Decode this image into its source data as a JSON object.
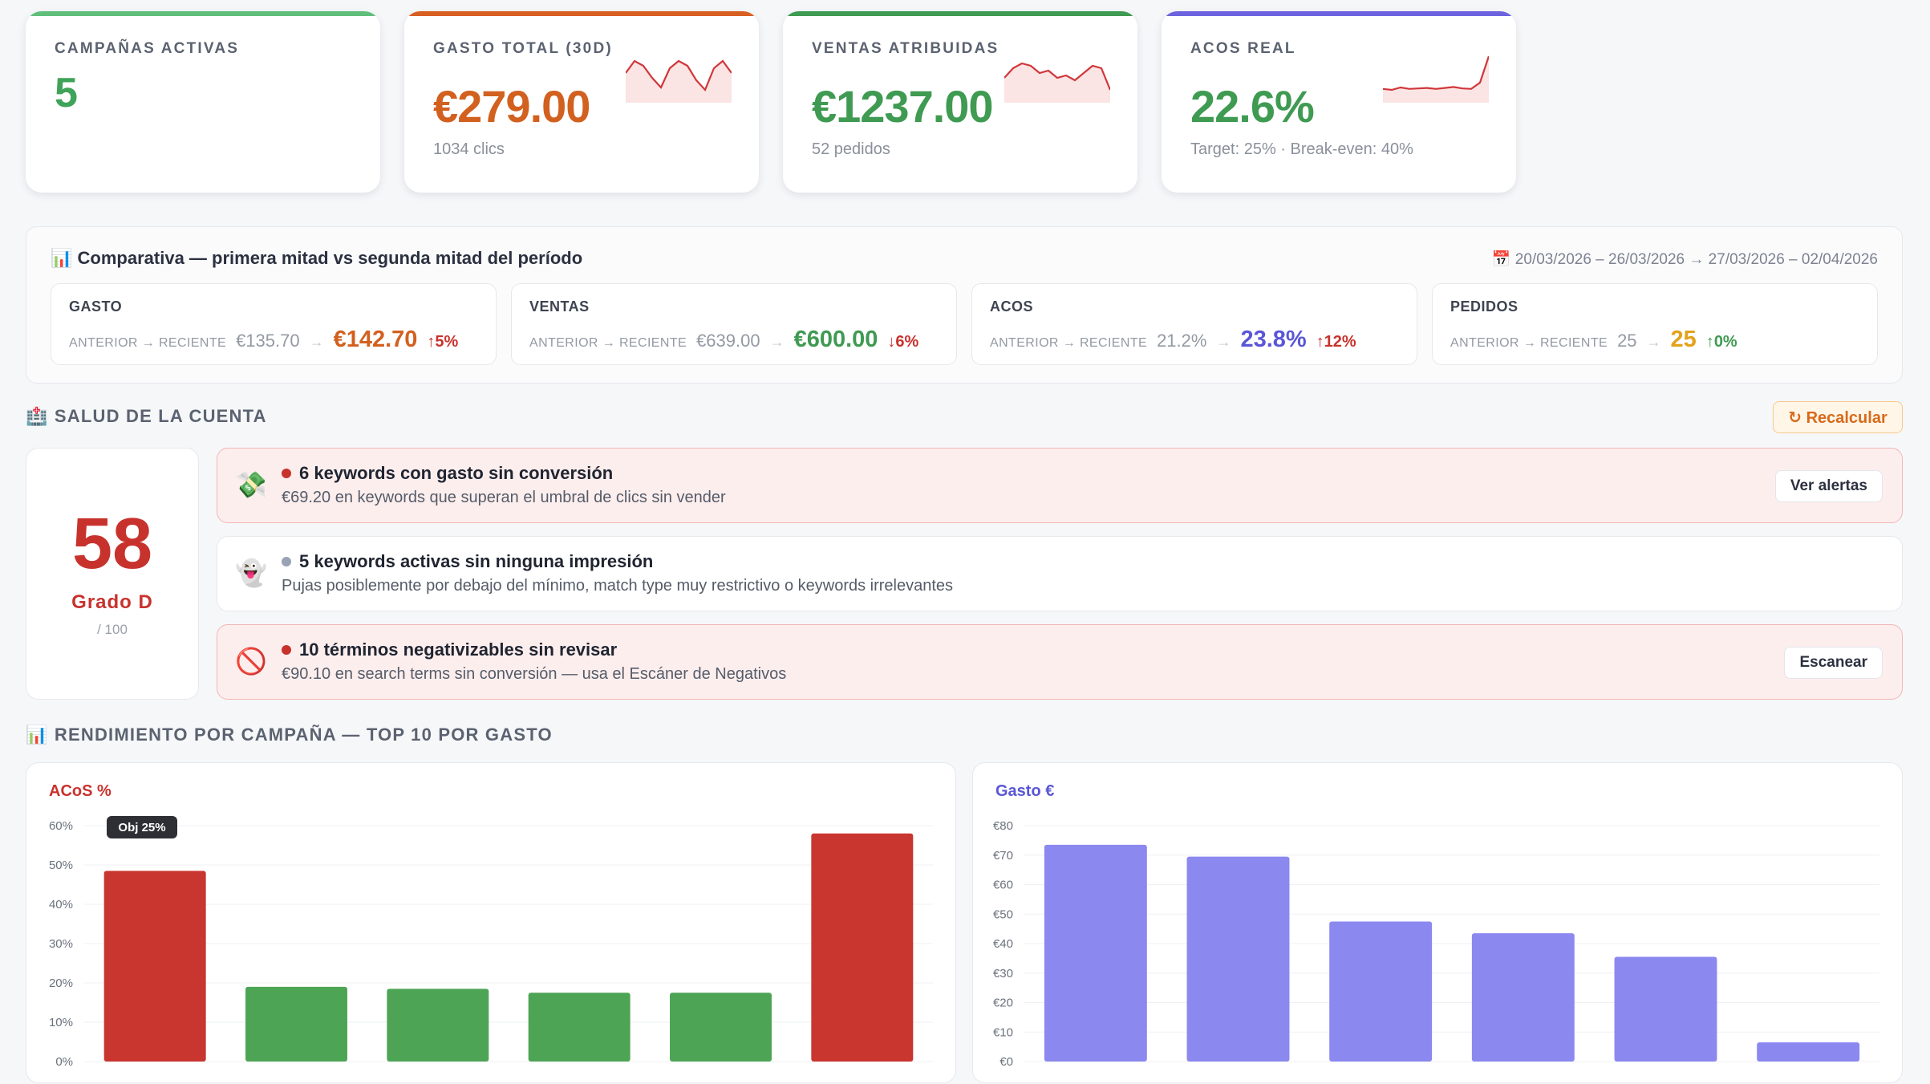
{
  "kpis": [
    {
      "label": "CAMPAÑAS ACTIVAS",
      "value": "5",
      "sub": "",
      "color": "#3fa35a",
      "bar": "#5fbf7a"
    },
    {
      "label": "GASTO TOTAL (30D)",
      "value": "€279.00",
      "sub": "1034 clics",
      "color": "#d2601f",
      "bar": "#d85f22"
    },
    {
      "label": "VENTAS ATRIBUIDAS",
      "value": "€1237.00",
      "sub": "52 pedidos",
      "color": "#3f9a52",
      "bar": "#3f9a52"
    },
    {
      "label": "ACOS REAL",
      "value": "22.6%",
      "sub": "Target: 25% · Break-even: 40%",
      "color": "#3f9a52",
      "bar": "#6d63e0"
    }
  ],
  "compare": {
    "icon": "📊",
    "title": "Comparativa — primera mitad vs segunda mitad del período",
    "range": "📅 20/03/2026 – 26/03/2026 → 27/03/2026 – 02/04/2026",
    "mini_label": "ANTERIOR → RECIENTE",
    "cards": [
      {
        "name": "GASTO",
        "prev": "€135.70",
        "now": "€142.70",
        "delta": "↑5%",
        "now_color": "#d2601f",
        "delta_color": "#c8322d"
      },
      {
        "name": "VENTAS",
        "prev": "€639.00",
        "now": "€600.00",
        "delta": "↓6%",
        "now_color": "#3f9a52",
        "delta_color": "#c8322d"
      },
      {
        "name": "ACOS",
        "prev": "21.2%",
        "now": "23.8%",
        "delta": "↑12%",
        "now_color": "#5b56d6",
        "delta_color": "#c8322d"
      },
      {
        "name": "PEDIDOS",
        "prev": "25",
        "now": "25",
        "delta": "↑0%",
        "now_color": "#e3a21a",
        "delta_color": "#3f9a52"
      }
    ]
  },
  "health": {
    "title": "🏥 SALUD DE LA CUENTA",
    "recalc": "↻ Recalcular",
    "score": "58",
    "grade": "Grado D",
    "max": "/ 100",
    "alerts": [
      {
        "icon": "💸",
        "title": "6 keywords con gasto sin conversión",
        "desc": "€69.20 en keywords que superan el umbral de clics sin vender",
        "button": "Ver alertas",
        "severity": "red",
        "dot": "#c8322d"
      },
      {
        "icon": "👻",
        "title": "5 keywords activas sin ninguna impresión",
        "desc": "Pujas posiblemente por debajo del mínimo, match type muy restrictivo o keywords irrelevantes",
        "button": "",
        "severity": "neutral",
        "dot": "#9aa3b5"
      },
      {
        "icon": "🚫",
        "title": "10 términos negativizables sin revisar",
        "desc": "€90.10 en search terms sin conversión — usa el Escáner de Negativos",
        "button": "Escanear",
        "severity": "red",
        "dot": "#c8322d"
      }
    ]
  },
  "performance": {
    "title": "📊 RENDIMIENTO POR CAMPAÑA — TOP 10 POR GASTO"
  },
  "chart_data": [
    {
      "type": "bar",
      "title": "ACoS %",
      "title_color": "#c8322d",
      "values": [
        48.5,
        19,
        18.5,
        17.5,
        17.5,
        58
      ],
      "colors": [
        "#c9352f",
        "#4ea455",
        "#4ea455",
        "#4ea455",
        "#4ea455",
        "#c9352f"
      ],
      "yticks": [
        "0%",
        "10%",
        "20%",
        "30%",
        "40%",
        "50%",
        "60%"
      ],
      "ylim": [
        0,
        60
      ],
      "annotation": "Obj 25%"
    },
    {
      "type": "bar",
      "title": "Gasto €",
      "title_color": "#5b56d6",
      "values": [
        73.5,
        69.5,
        47.5,
        43.5,
        35.5,
        6.5
      ],
      "colors": [
        "#8b88f0",
        "#8b88f0",
        "#8b88f0",
        "#8b88f0",
        "#8b88f0",
        "#8b88f0"
      ],
      "yticks": [
        "€0",
        "€10",
        "€20",
        "€30",
        "€40",
        "€50",
        "€60",
        "€70",
        "€80"
      ],
      "ylim": [
        0,
        80
      ]
    }
  ],
  "sparks": {
    "gasto": [
      0.45,
      0.2,
      0.3,
      0.55,
      0.75,
      0.35,
      0.2,
      0.3,
      0.6,
      0.8,
      0.35,
      0.2,
      0.45
    ],
    "ventas": [
      0.55,
      0.35,
      0.25,
      0.3,
      0.45,
      0.4,
      0.55,
      0.5,
      0.6,
      0.45,
      0.3,
      0.35,
      0.8
    ],
    "acos": [
      0.78,
      0.8,
      0.75,
      0.78,
      0.77,
      0.76,
      0.78,
      0.76,
      0.74,
      0.77,
      0.78,
      0.65,
      0.1
    ]
  }
}
